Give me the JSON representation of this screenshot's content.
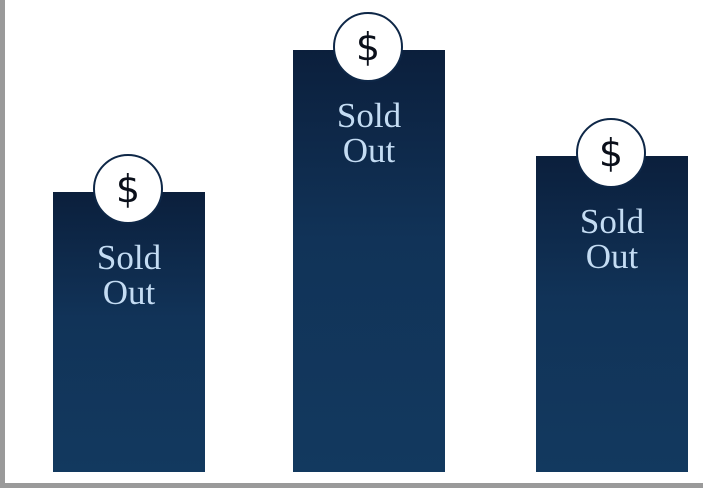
{
  "items": [
    {
      "icon": "$",
      "label": "Sold Out"
    },
    {
      "icon": "$",
      "label": "Sold Out"
    },
    {
      "icon": "$",
      "label": "Sold Out"
    }
  ]
}
